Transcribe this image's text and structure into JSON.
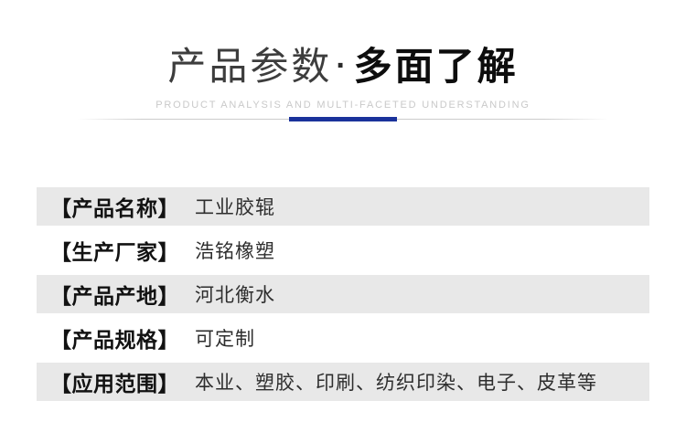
{
  "header": {
    "title_light": "产品参数",
    "title_separator": "·",
    "title_bold": "多面了解",
    "subtitle": "PRODUCT ANALYSIS AND MULTI-FACETED UNDERSTANDING",
    "accent_color": "#1a329b"
  },
  "table": {
    "stripe_color": "#e8e8e8",
    "rows": [
      {
        "label": "【产品名称】",
        "value": "工业胶辊"
      },
      {
        "label": "【生产厂家】",
        "value": "浩铭橡塑"
      },
      {
        "label": "【产品产地】",
        "value": "河北衡水"
      },
      {
        "label": "【产品规格】",
        "value": "可定制"
      },
      {
        "label": "【应用范围】",
        "value": "本业、塑胶、印刷、纺织印染、电子、皮革等"
      }
    ]
  }
}
